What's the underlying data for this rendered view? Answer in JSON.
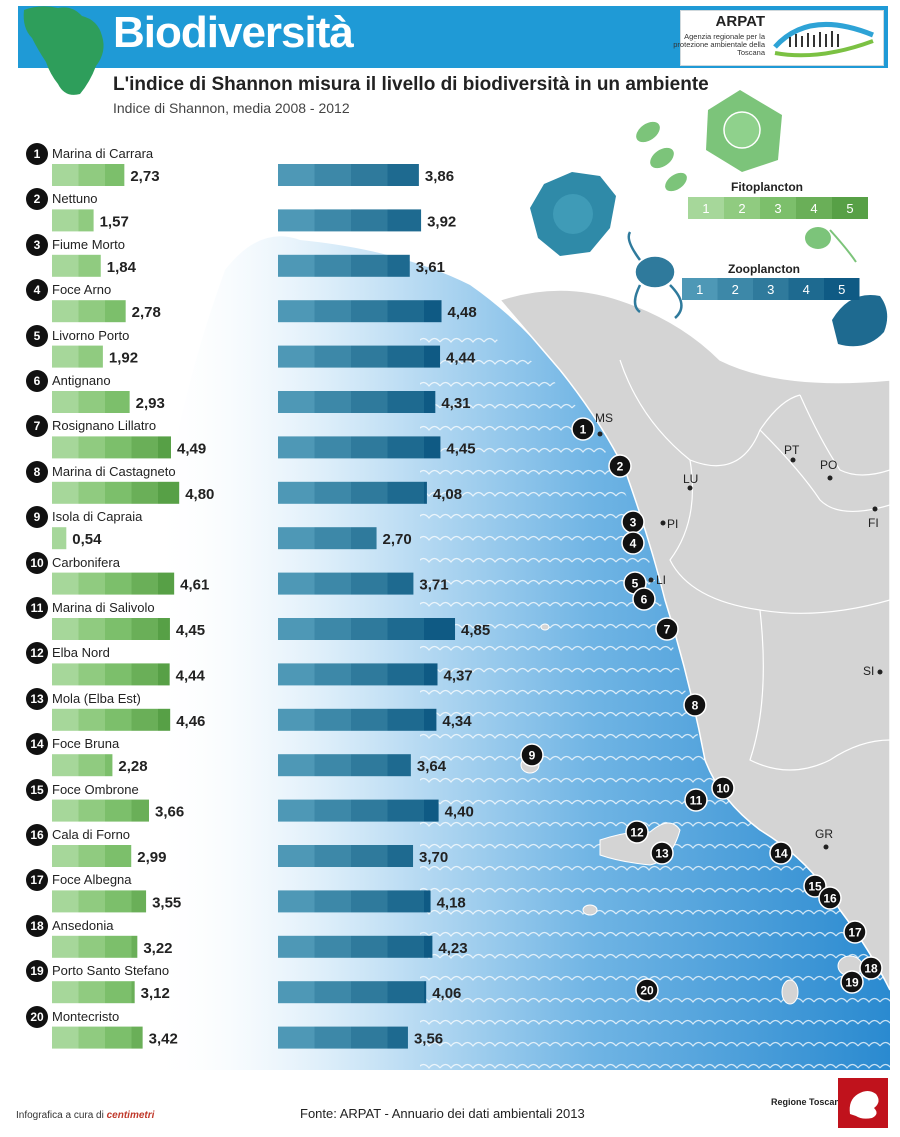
{
  "header": {
    "title": "Biodiversità",
    "subtitle": "L'indice di Shannon misura il livello di biodiversità in un ambiente",
    "caption": "Indice di Shannon, media 2008 - 2012",
    "logo_name": "ARPAT",
    "logo_subtitle": "Agenzia regionale per la protezione ambientale della Toscana"
  },
  "legend": {
    "fitoplancton_title": "Fitoplancton",
    "zooplancton_title": "Zooplancton",
    "steps": [
      "1",
      "2",
      "3",
      "4",
      "5"
    ],
    "colors": {
      "fitoplancton": [
        "#a6d79a",
        "#90cb80",
        "#7cbf6b",
        "#6aaf58",
        "#57a046"
      ],
      "zooplancton": [
        "#4e98b6",
        "#3d88a8",
        "#2f7a9c",
        "#1e6a90",
        "#0f5a84"
      ]
    }
  },
  "map": {
    "cities": [
      "MS",
      "LU",
      "PT",
      "PO",
      "PI",
      "LI",
      "FI",
      "SI",
      "GR"
    ],
    "colors": {
      "sea_light": "#d9ecf9",
      "sea_deep": "#2a8ad0",
      "land": "#d4d4d4"
    }
  },
  "chart_data": {
    "type": "bar",
    "title": "Biodiversità",
    "subtitle": "Indice di Shannon, media 2008 - 2012",
    "xlim": [
      0,
      5
    ],
    "categories": [
      "Marina di Carrara",
      "Nettuno",
      "Fiume Morto",
      "Foce Arno",
      "Livorno Porto",
      "Antignano",
      "Rosignano Lillatro",
      "Marina di Castagneto",
      "Isola di Capraia",
      "Carbonifera",
      "Marina di Salivolo",
      "Elba Nord",
      "Mola (Elba Est)",
      "Foce Bruna",
      "Foce Ombrone",
      "Cala di Forno",
      "Foce Albegna",
      "Ansedonia",
      "Porto Santo Stefano",
      "Montecristo"
    ],
    "numbers": [
      "1",
      "2",
      "3",
      "4",
      "5",
      "6",
      "7",
      "8",
      "9",
      "10",
      "11",
      "12",
      "13",
      "14",
      "15",
      "16",
      "17",
      "18",
      "19",
      "20"
    ],
    "series": [
      {
        "name": "Fitoplancton",
        "values": [
          2.73,
          1.57,
          1.84,
          2.78,
          1.92,
          2.93,
          4.49,
          4.8,
          0.54,
          4.61,
          4.45,
          4.44,
          4.46,
          2.28,
          3.66,
          2.99,
          3.55,
          3.22,
          3.12,
          3.42
        ],
        "labels": [
          "2,73",
          "1,57",
          "1,84",
          "2,78",
          "1,92",
          "2,93",
          "4,49",
          "4,80",
          "0,54",
          "4,61",
          "4,45",
          "4,44",
          "4,46",
          "2,28",
          "3,66",
          "2,99",
          "3,55",
          "3,22",
          "3,12",
          "3,42"
        ]
      },
      {
        "name": "Zooplancton",
        "values": [
          3.86,
          3.92,
          3.61,
          4.48,
          4.44,
          4.31,
          4.45,
          4.08,
          2.7,
          3.71,
          4.85,
          4.37,
          4.34,
          3.64,
          4.4,
          3.7,
          4.18,
          4.23,
          4.06,
          3.56
        ],
        "labels": [
          "3,86",
          "3,92",
          "3,61",
          "4,48",
          "4,44",
          "4,31",
          "4,45",
          "4,08",
          "2,70",
          "3,71",
          "4,85",
          "4,37",
          "4,34",
          "3,64",
          "4,40",
          "3,70",
          "4,18",
          "4,23",
          "4,06",
          "3,56"
        ]
      }
    ]
  },
  "footer": {
    "credit_prefix": "Infografica a cura di",
    "credit_brand": "centimetri",
    "source": "Fonte: ARPAT - Annuario dei dati ambientali 2013",
    "region": "Regione Toscana"
  }
}
